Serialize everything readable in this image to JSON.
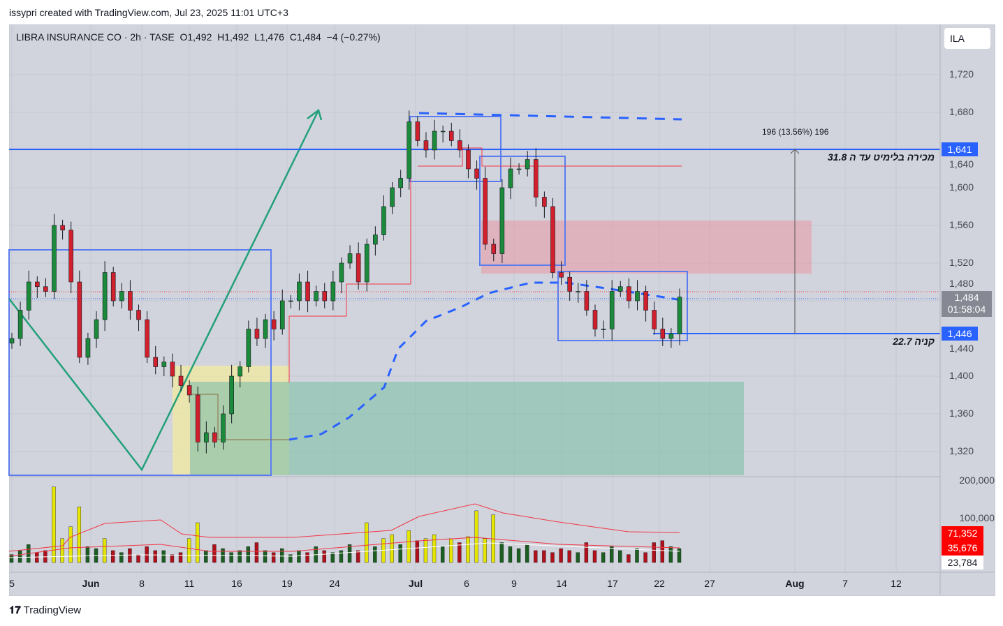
{
  "credit": "issypri created with TradingView.com, Jul 23, 2025 11:01 UTC+3",
  "legend": {
    "symbol": "LIBRA INSURANCE CO · 2h · TASE",
    "open": "O1,492",
    "high": "H1,492",
    "low": "L1,476",
    "close": "C1,484",
    "change": "−4 (−0.27%)"
  },
  "currency": "ILA",
  "price_axis": [
    "1,720",
    "1,680",
    "1,640",
    "1,600",
    "1,560",
    "1,520",
    "1,480",
    "1,440",
    "1,400",
    "1,360",
    "1,320"
  ],
  "price_tags": {
    "top_line": "1,641",
    "current": "1,484",
    "countdown": "01:58:04",
    "bottom_line": "1,446"
  },
  "volume_axis": [
    "200,000",
    "100,000"
  ],
  "volume_tags": [
    "71,352",
    "35,676",
    "23,784"
  ],
  "time_axis": [
    "5",
    "Jun",
    "8",
    "11",
    "16",
    "19",
    "24",
    "Jul",
    "6",
    "9",
    "14",
    "17",
    "22",
    "27",
    "Aug",
    "7",
    "12"
  ],
  "annotations": {
    "measure": "196 (13.56%) 196",
    "sell_note": "מכירה בלימיט עד ה 31.8",
    "buy_note": "קניה 22.7"
  },
  "brand": "TradingView",
  "colors": {
    "up": "#089981",
    "down": "#f23645",
    "line": "#2962ff",
    "volume_up": "#1b5e20",
    "volume_high": "#e6e600"
  },
  "chart_data": {
    "type": "candlestick",
    "title": "LIBRA INSURANCE CO · 2h · TASE",
    "ylim": [
      1300,
      1740
    ],
    "closes": [
      1440,
      1470,
      1500,
      1495,
      1490,
      1560,
      1555,
      1500,
      1420,
      1440,
      1460,
      1510,
      1480,
      1490,
      1470,
      1460,
      1420,
      1410,
      1415,
      1400,
      1390,
      1380,
      1330,
      1340,
      1330,
      1360,
      1400,
      1410,
      1450,
      1440,
      1460,
      1450,
      1480,
      1480,
      1500,
      1480,
      1490,
      1480,
      1500,
      1520,
      1530,
      1500,
      1540,
      1550,
      1580,
      1600,
      1610,
      1670,
      1650,
      1640,
      1660,
      1660,
      1650,
      1640,
      1620,
      1610,
      1540,
      1530,
      1600,
      1620,
      1620,
      1630,
      1590,
      1580,
      1510,
      1505,
      1490,
      1490,
      1470,
      1450,
      1450,
      1490,
      1495,
      1480,
      1490,
      1470,
      1450,
      1440,
      1445,
      1484
    ],
    "volumes": [
      20,
      30,
      45,
      25,
      30,
      190,
      60,
      90,
      140,
      40,
      35,
      60,
      30,
      25,
      35,
      20,
      40,
      30,
      30,
      20,
      25,
      60,
      100,
      30,
      45,
      35,
      25,
      30,
      40,
      50,
      30,
      25,
      35,
      20,
      30,
      25,
      40,
      30,
      25,
      30,
      45,
      30,
      100,
      40,
      60,
      70,
      45,
      80,
      55,
      60,
      70,
      40,
      60,
      50,
      65,
      130,
      60,
      120,
      50,
      40,
      35,
      45,
      30,
      30,
      25,
      35,
      30,
      25,
      50,
      30,
      25,
      40,
      30,
      20,
      35,
      25,
      50,
      55,
      40,
      35
    ]
  }
}
